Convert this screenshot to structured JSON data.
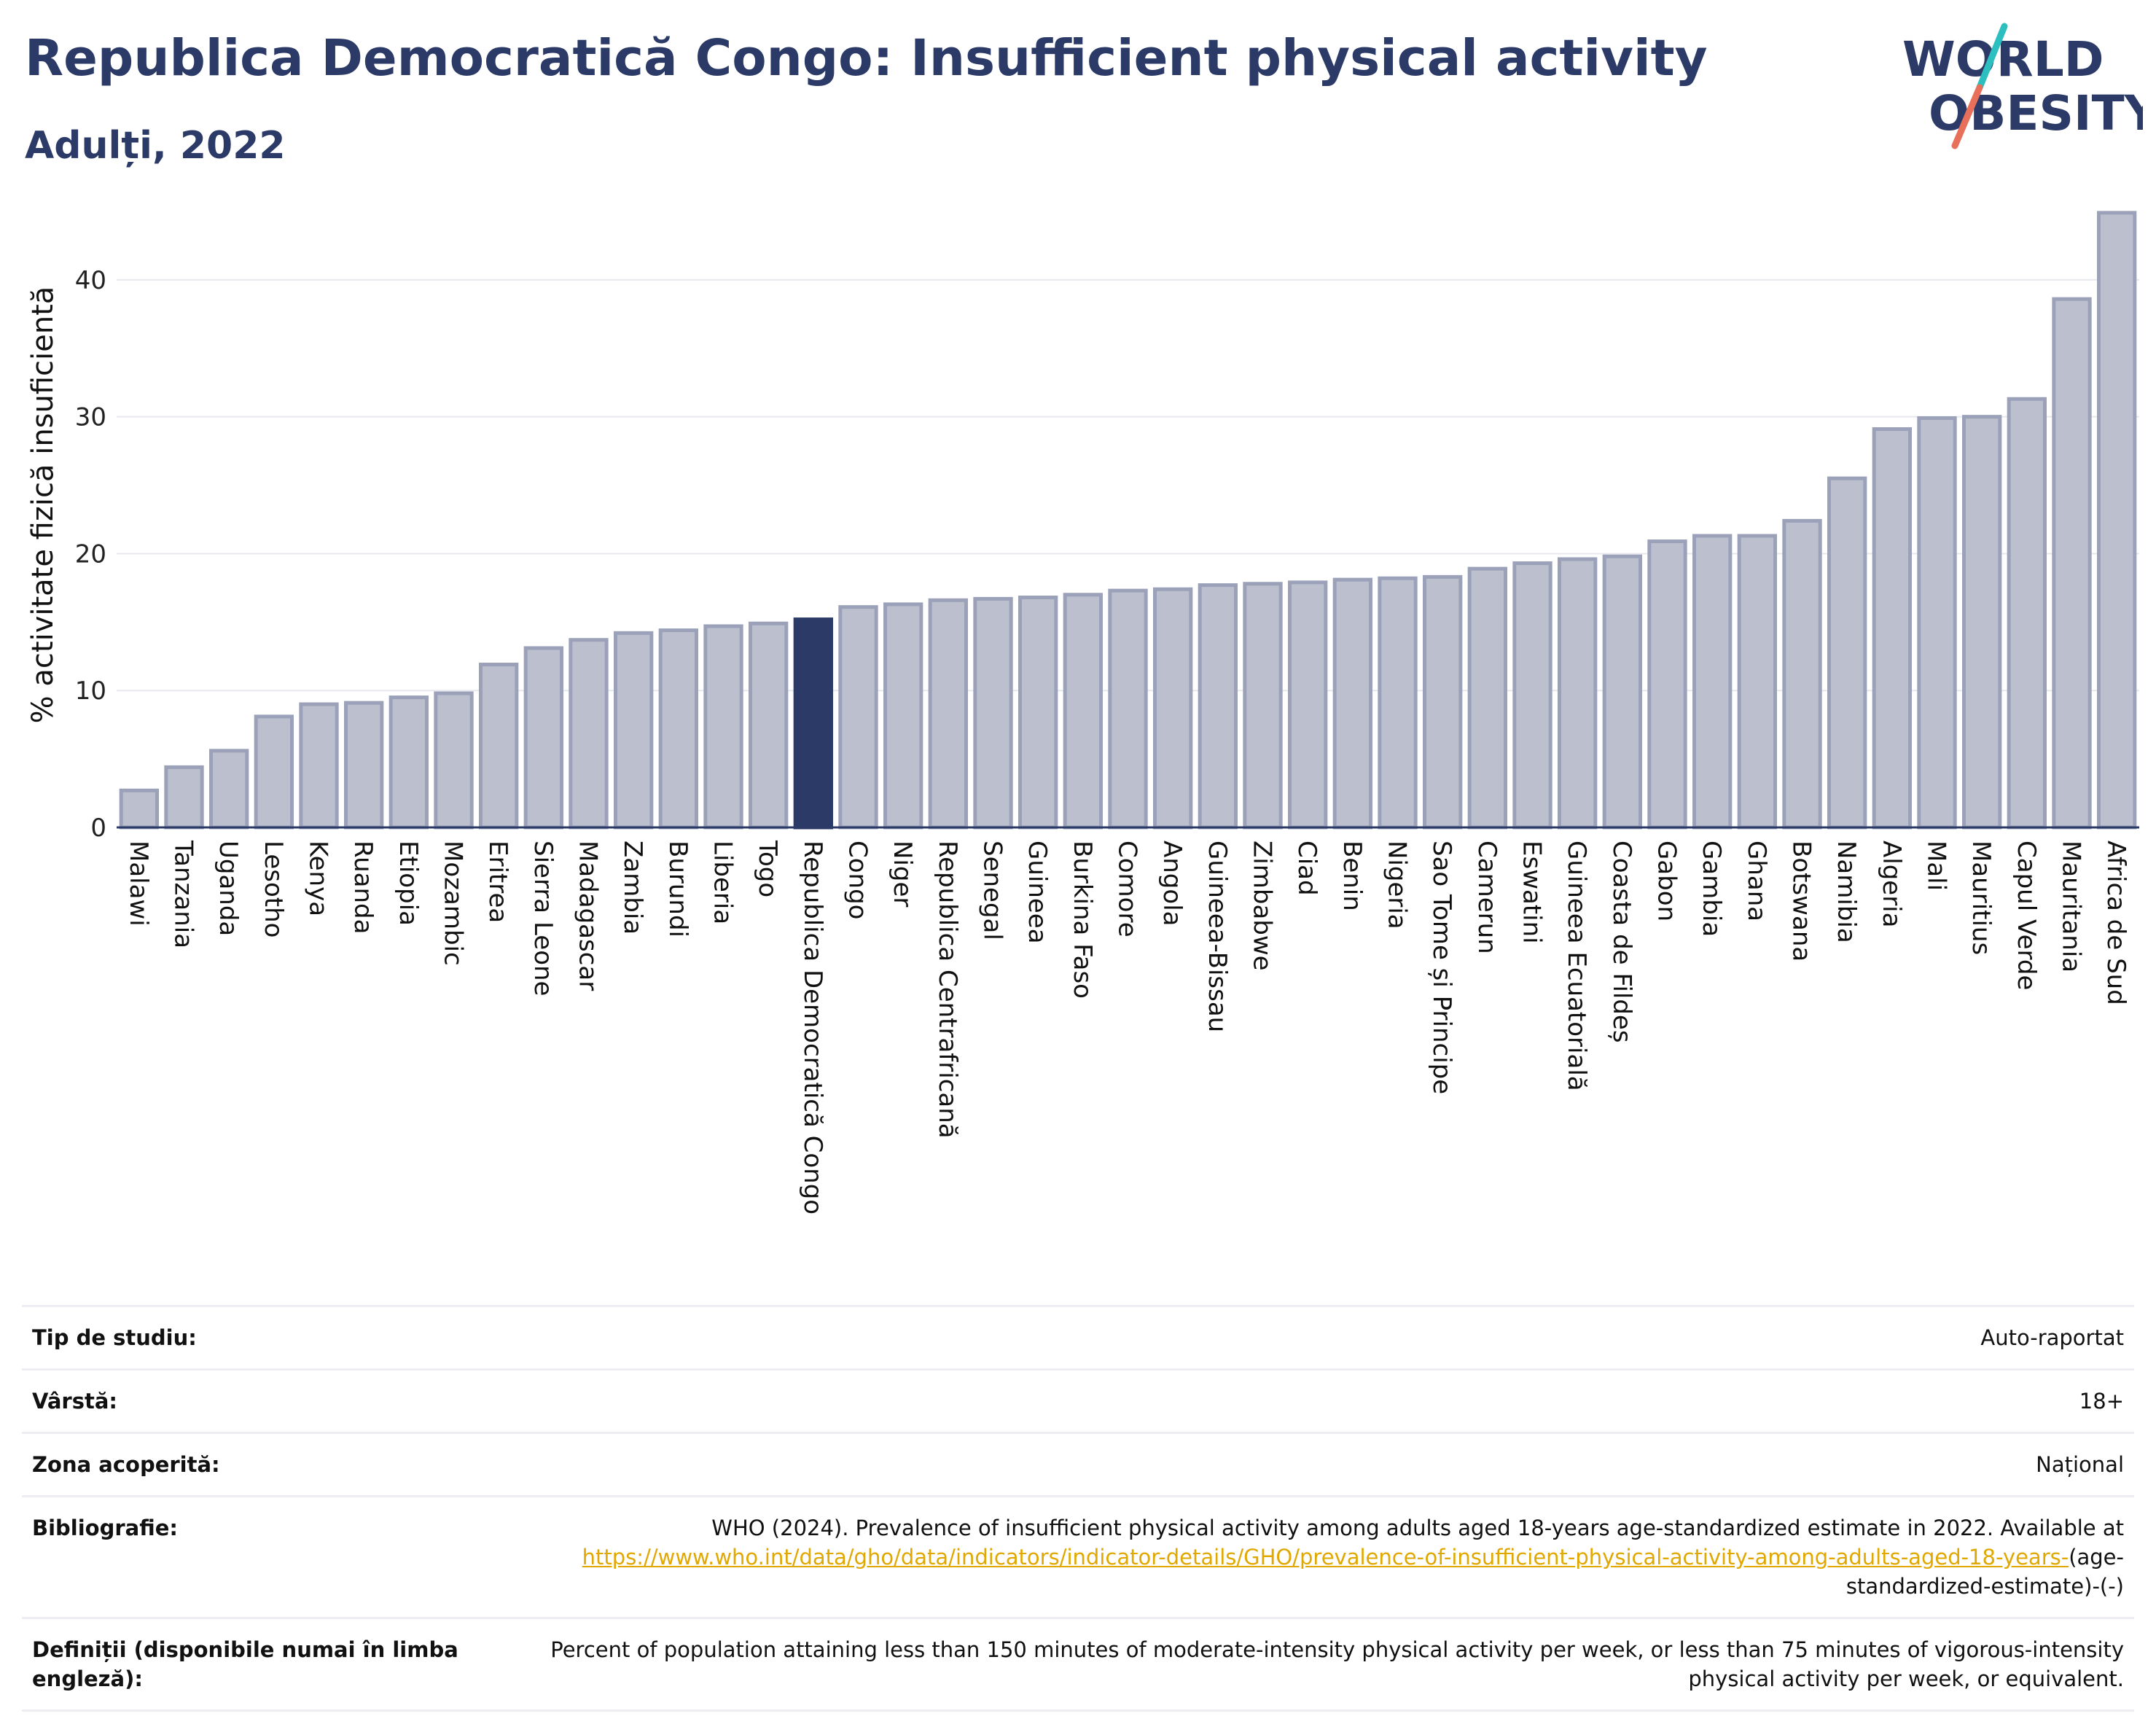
{
  "header": {
    "title": "Republica Democratică Congo: Insufficient physical activity",
    "subtitle": "Adulți, 2022"
  },
  "logo": {
    "line1": "WORLD",
    "line2": "OBESITY",
    "colors": {
      "text": "#2b3a67",
      "slash_top": "#2bbfbf",
      "slash_bottom": "#e8705a"
    }
  },
  "chart_data": {
    "type": "bar",
    "ylabel": "% activitate fizică insuficientă",
    "ylim": [
      0,
      45
    ],
    "yticks": [
      0,
      10,
      20,
      30,
      40
    ],
    "grid": true,
    "highlight": "Republica Democratică Congo",
    "colors": {
      "bar": "#bcc0ce",
      "bar_edge": "#9aa1b8",
      "highlight": "#2b3a67"
    },
    "categories": [
      "Malawi",
      "Tanzania",
      "Uganda",
      "Lesotho",
      "Kenya",
      "Ruanda",
      "Etiopia",
      "Mozambic",
      "Eritrea",
      "Sierra Leone",
      "Madagascar",
      "Zambia",
      "Burundi",
      "Liberia",
      "Togo",
      "Republica Democratică Congo",
      "Congo",
      "Niger",
      "Republica Centrafricană",
      "Senegal",
      "Guineea",
      "Burkina Faso",
      "Comore",
      "Angola",
      "Guineea-Bissau",
      "Zimbabwe",
      "Ciad",
      "Benin",
      "Nigeria",
      "Sao Tome și Principe",
      "Camerun",
      "Eswatini",
      "Guineea Ecuatorială",
      "Coasta de Fildeș",
      "Gabon",
      "Gambia",
      "Ghana",
      "Botswana",
      "Namibia",
      "Algeria",
      "Mali",
      "Mauritius",
      "Capul Verde",
      "Mauritania",
      "Africa de Sud"
    ],
    "values": [
      2.7,
      4.4,
      5.6,
      8.1,
      9.0,
      9.1,
      9.5,
      9.8,
      11.9,
      13.1,
      13.7,
      14.2,
      14.4,
      14.7,
      14.9,
      15.2,
      16.1,
      16.3,
      16.6,
      16.7,
      16.8,
      17.0,
      17.3,
      17.4,
      17.7,
      17.8,
      17.9,
      18.1,
      18.2,
      18.3,
      18.9,
      19.3,
      19.6,
      19.8,
      20.9,
      21.3,
      21.3,
      22.4,
      25.5,
      29.1,
      29.9,
      30.0,
      31.3,
      38.6,
      44.9
    ]
  },
  "info": [
    {
      "label": "Tip de studiu:",
      "value": "Auto-raportat"
    },
    {
      "label": "Vârstă:",
      "value": "18+"
    },
    {
      "label": "Zona acoperită:",
      "value": "Național"
    },
    {
      "label": "Bibliografie:",
      "value": "WHO (2024). Prevalence of insufficient physical activity among adults aged 18-years age-standardized estimate in 2022. Available at ",
      "link": "https://www.who.int/data/gho/data/indicators/indicator-details/GHO/prevalence-of-insufficient-physical-activity-among-adults-aged-18-years-",
      "suffix": "(age-standardized-estimate)-(-)"
    },
    {
      "label": "Definiții (disponibile numai în limba engleză):",
      "value": "Percent of population attaining less than 150 minutes of moderate-intensity physical activity per week, or less than 75 minutes of vigorous-intensity physical activity per week, or equivalent."
    }
  ]
}
